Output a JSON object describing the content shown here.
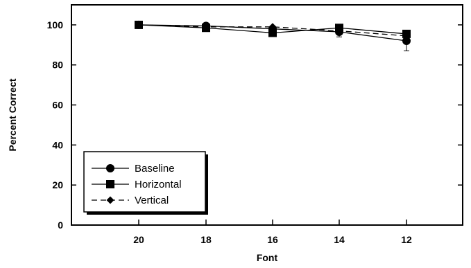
{
  "chart_data": {
    "type": "line",
    "title": "",
    "xlabel": "Font",
    "ylabel": "Percent Correct",
    "categories": [
      "20",
      "18",
      "16",
      "14",
      "12"
    ],
    "ylim": [
      0,
      110
    ],
    "yticks": [
      0,
      20,
      40,
      60,
      80,
      100
    ],
    "grid": false,
    "legend_position": "bottom-left",
    "series": [
      {
        "name": "Baseline",
        "marker": "circle",
        "line_style": "solid",
        "values": [
          100,
          99.5,
          98,
          96.5,
          92
        ],
        "error": [
          0,
          0,
          0,
          2.5,
          5
        ]
      },
      {
        "name": "Horizontal",
        "marker": "square",
        "line_style": "solid",
        "values": [
          100,
          98.5,
          96,
          98.5,
          95.5
        ],
        "error": [
          0,
          0,
          0,
          0,
          1.5
        ]
      },
      {
        "name": "Vertical",
        "marker": "diamond",
        "line_style": "dashed",
        "values": [
          100,
          99,
          99,
          97,
          94.5
        ],
        "error": [
          0,
          0,
          0,
          0,
          0
        ]
      }
    ]
  }
}
